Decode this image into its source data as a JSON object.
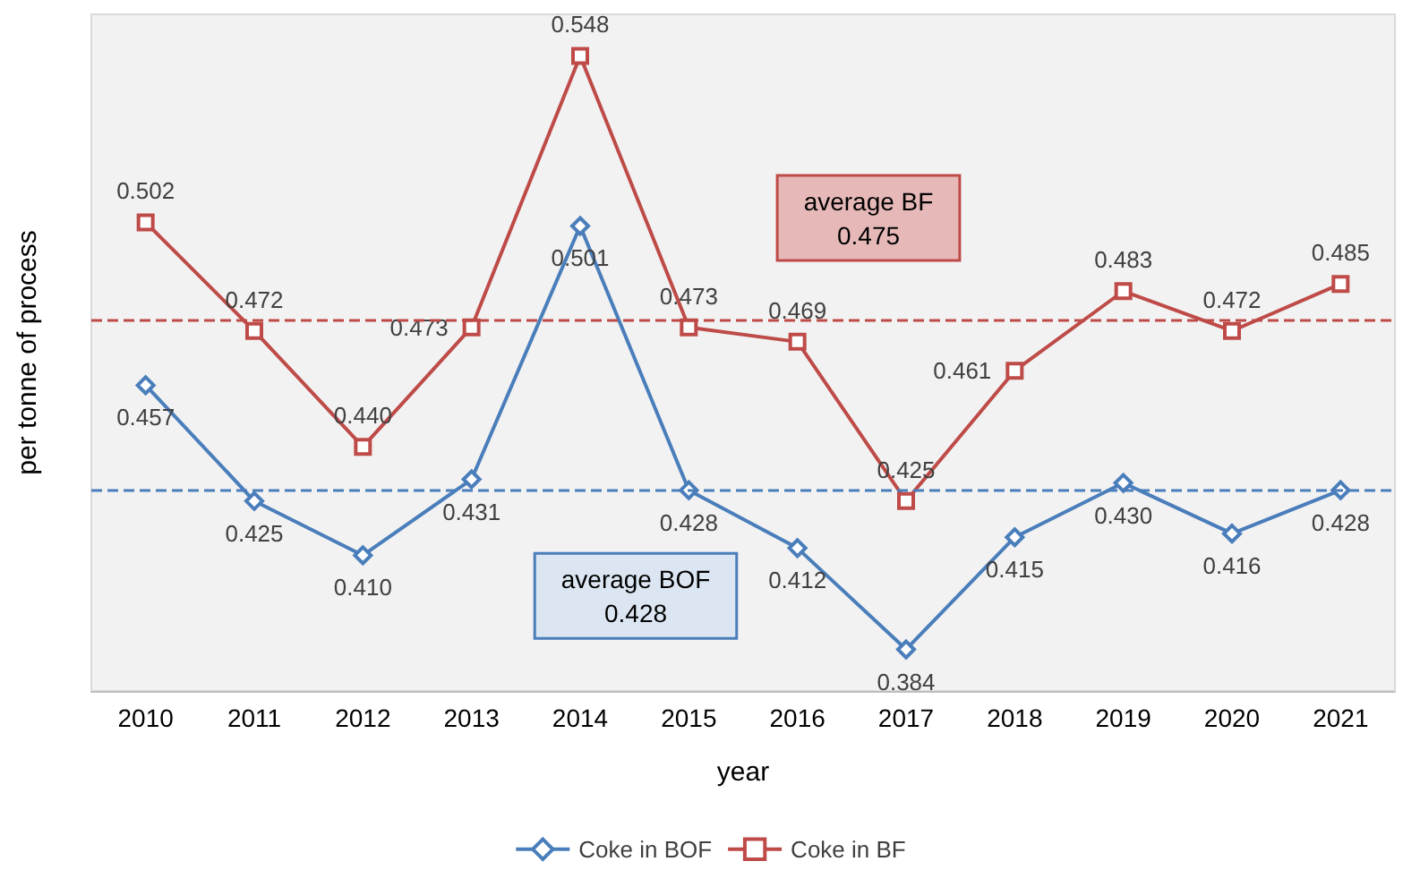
{
  "chart_data": {
    "type": "line",
    "xlabel": "year",
    "ylabel": "per tonne of process",
    "categories": [
      "2010",
      "2011",
      "2012",
      "2013",
      "2014",
      "2015",
      "2016",
      "2017",
      "2018",
      "2019",
      "2020",
      "2021"
    ],
    "series": [
      {
        "name": "Coke in BOF",
        "color": "#4a7ebb",
        "marker": "diamond",
        "values": [
          0.457,
          0.425,
          0.41,
          0.431,
          0.501,
          0.428,
          0.412,
          0.384,
          0.415,
          0.43,
          0.416,
          0.428
        ],
        "value_labels": [
          "0.457",
          "0.425",
          "0.410",
          "0.431",
          "0.501",
          "0.428",
          "0.412",
          "0.384",
          "0.415",
          "0.430",
          "0.416",
          "0.428"
        ]
      },
      {
        "name": "Coke in BF",
        "color": "#be4b48",
        "marker": "square",
        "values": [
          0.502,
          0.472,
          0.44,
          0.473,
          0.548,
          0.473,
          0.469,
          0.425,
          0.461,
          0.483,
          0.472,
          0.485
        ],
        "value_labels": [
          "0.502",
          "0.472",
          "0.440",
          "0.473",
          "0.548",
          "0.473",
          "0.469",
          "0.425",
          "0.461",
          "0.483",
          "0.472",
          "0.485"
        ]
      }
    ],
    "ref_lines": [
      {
        "axis": "y",
        "value": 0.475,
        "label": "average BF\n0.475",
        "color": "#be4b48",
        "line_style": "dashed"
      },
      {
        "axis": "y",
        "value": 0.428,
        "label": "average BOF\n0.428",
        "color": "#4a7ebb",
        "line_style": "dashed"
      }
    ],
    "legend": "bottom",
    "grid": false,
    "line_style": "solid"
  }
}
